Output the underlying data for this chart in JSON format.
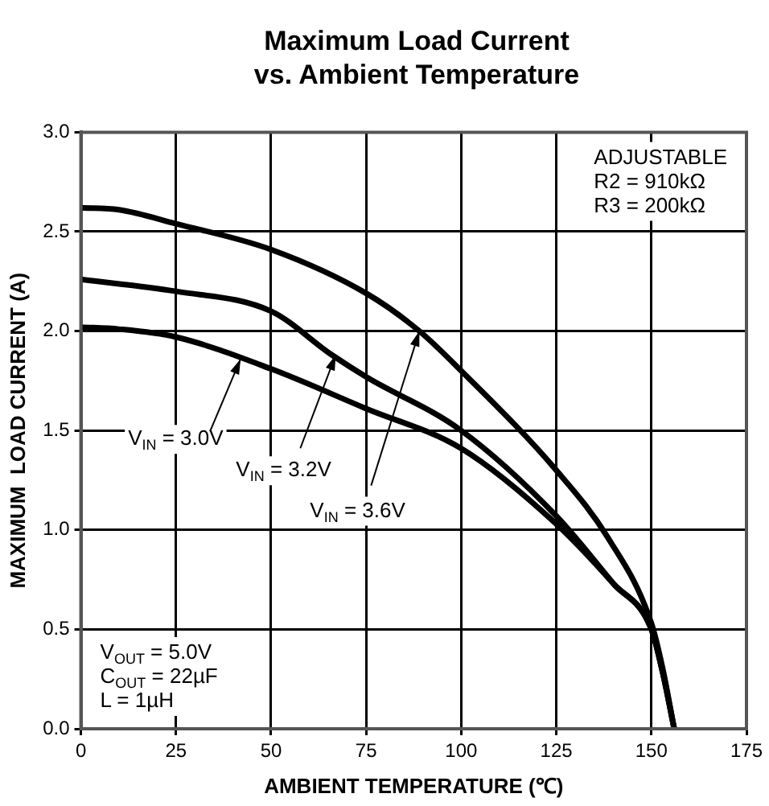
{
  "chart_data": {
    "type": "line",
    "title": "Maximum Load Current vs. Ambient Temperature",
    "xlabel": "AMBIENT TEMPERATURE (℃)",
    "ylabel": "MAXIMUM  LOAD CURRENT (A)",
    "series": [
      {
        "color": "#000000",
        "x": [
          0,
          10,
          25,
          50,
          75,
          100,
          125,
          140,
          150,
          153,
          156
        ],
        "values": [
          2.02,
          2.01,
          1.97,
          1.81,
          1.61,
          1.41,
          1.03,
          0.73,
          0.5,
          0.28,
          0
        ]
      },
      {
        "color": "#000000",
        "x": [
          0,
          25,
          50,
          66,
          75,
          100,
          125,
          140,
          150,
          153,
          156
        ],
        "values": [
          2.26,
          2.2,
          2.1,
          1.88,
          1.77,
          1.5,
          1.07,
          0.73,
          0.5,
          0.28,
          0
        ]
      },
      {
        "color": "#000000",
        "x": [
          0,
          10,
          25,
          50,
          75,
          89,
          100,
          125,
          138.6,
          150,
          153,
          156
        ],
        "values": [
          2.62,
          2.61,
          2.54,
          2.41,
          2.19,
          2.0,
          1.8,
          1.3,
          0.96,
          0.53,
          0.3,
          0
        ]
      }
    ],
    "xlim": [
      0,
      175
    ],
    "xticks": [
      0,
      25,
      50,
      75,
      100,
      125,
      150,
      175
    ],
    "ylim": [
      0,
      3
    ],
    "yticks": [
      {
        "value": 0,
        "label": "0.0"
      },
      {
        "value": 0.5,
        "label": "0.5"
      },
      {
        "value": 1,
        "label": "1.0"
      },
      {
        "value": 1.5,
        "label": "1.5"
      },
      {
        "value": 2,
        "label": "2.0"
      },
      {
        "value": 2.5,
        "label": "2.5"
      },
      {
        "value": 3,
        "label": "3.0"
      }
    ],
    "grid": true,
    "annotations": [
      {
        "text": "V$_{IN}$ = 3.0V",
        "x": 42,
        "y": 1.86
      },
      {
        "text": "V$_{IN}$ = 3.2V",
        "x": 67,
        "y": 1.88
      },
      {
        "text": "V$_{IN}$ = 3.6V",
        "x": 89,
        "y": 2.0
      },
      "ADJUSTABLE",
      "R2 = 910kΩ",
      "R3 = 200kΩ",
      "V$_{OUT}$ = 5.0V",
      "C$_{OUT}$ = 22µF",
      "L = 1µH"
    ]
  }
}
